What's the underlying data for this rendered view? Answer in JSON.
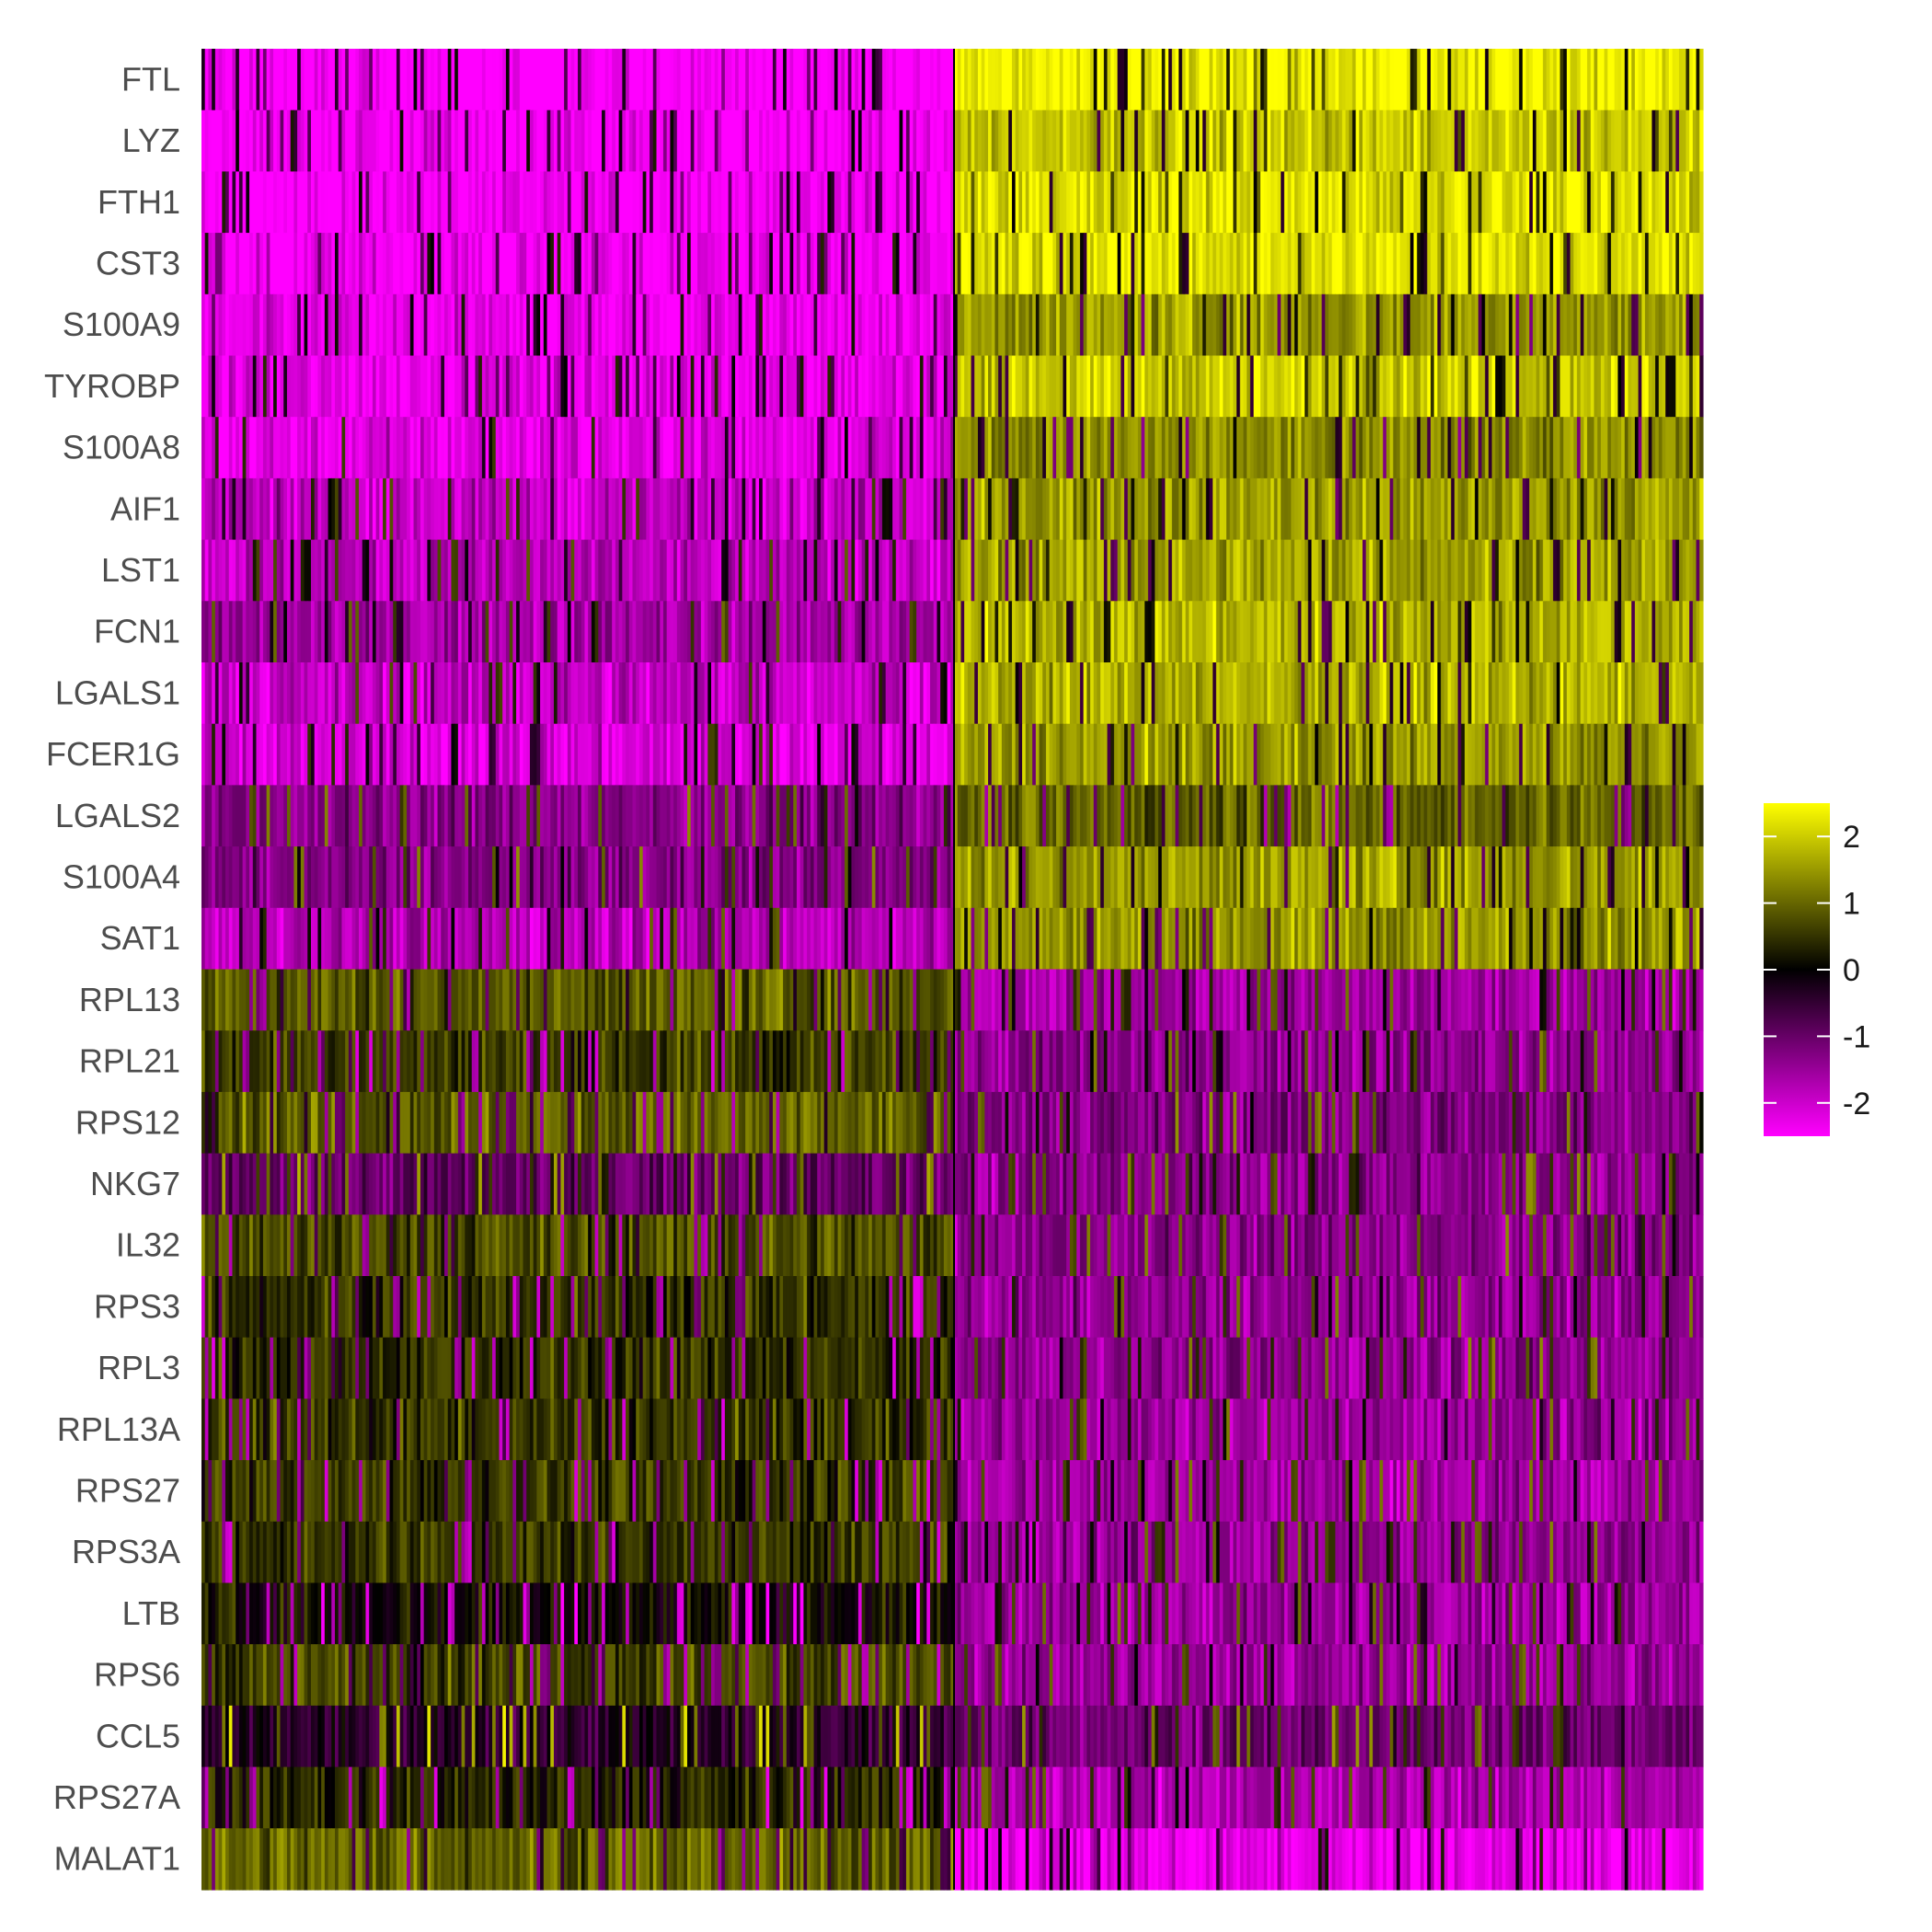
{
  "chart_data": {
    "type": "heatmap",
    "title": "",
    "xlabel": "",
    "ylabel": "",
    "rows": [
      "FTL",
      "LYZ",
      "FTH1",
      "CST3",
      "S100A9",
      "TYROBP",
      "S100A8",
      "AIF1",
      "LST1",
      "FCN1",
      "LGALS1",
      "FCER1G",
      "LGALS2",
      "S100A4",
      "SAT1",
      "RPL13",
      "RPL21",
      "RPS12",
      "NKG7",
      "IL32",
      "RPS3",
      "RPL3",
      "RPL13A",
      "RPS27",
      "RPS3A",
      "LTB",
      "RPS6",
      "CCL5",
      "RPS27A",
      "MALAT1"
    ],
    "column_groups": [
      {
        "cells": 220,
        "row_means": [
          -2.6,
          -2.5,
          -2.45,
          -2.4,
          -2.35,
          -2.25,
          -2.2,
          -1.9,
          -1.85,
          -1.6,
          -1.9,
          -2.1,
          -1.3,
          -1.3,
          -1.75,
          0.9,
          0.6,
          0.95,
          -1.0,
          0.75,
          0.5,
          0.5,
          0.5,
          0.55,
          0.55,
          0.1,
          0.7,
          -0.4,
          0.35,
          1.0
        ]
      },
      {
        "cells": 220,
        "row_means": [
          2.4,
          1.95,
          2.2,
          2.25,
          1.5,
          2.05,
          1.35,
          1.55,
          1.6,
          1.8,
          1.75,
          1.5,
          1.0,
          1.55,
          1.5,
          -1.6,
          -1.4,
          -1.25,
          -1.35,
          -1.3,
          -1.45,
          -1.4,
          -1.5,
          -1.55,
          -1.45,
          -1.55,
          -1.5,
          -1.05,
          -1.65,
          -2.3
        ]
      }
    ],
    "color_scale": {
      "min": -2.5,
      "max": 2.5,
      "stops": [
        {
          "value": -2.5,
          "color": "#ff00ff"
        },
        {
          "value": 0,
          "color": "#000000"
        },
        {
          "value": 2.5,
          "color": "#ffff00"
        }
      ]
    },
    "legend": {
      "position": "right",
      "ticks": [
        {
          "value": 2,
          "label": "2"
        },
        {
          "value": 1,
          "label": "1"
        },
        {
          "value": 0,
          "label": "0"
        },
        {
          "value": -1,
          "label": "-1"
        },
        {
          "value": -2,
          "label": "-2"
        }
      ]
    },
    "grid": false
  }
}
